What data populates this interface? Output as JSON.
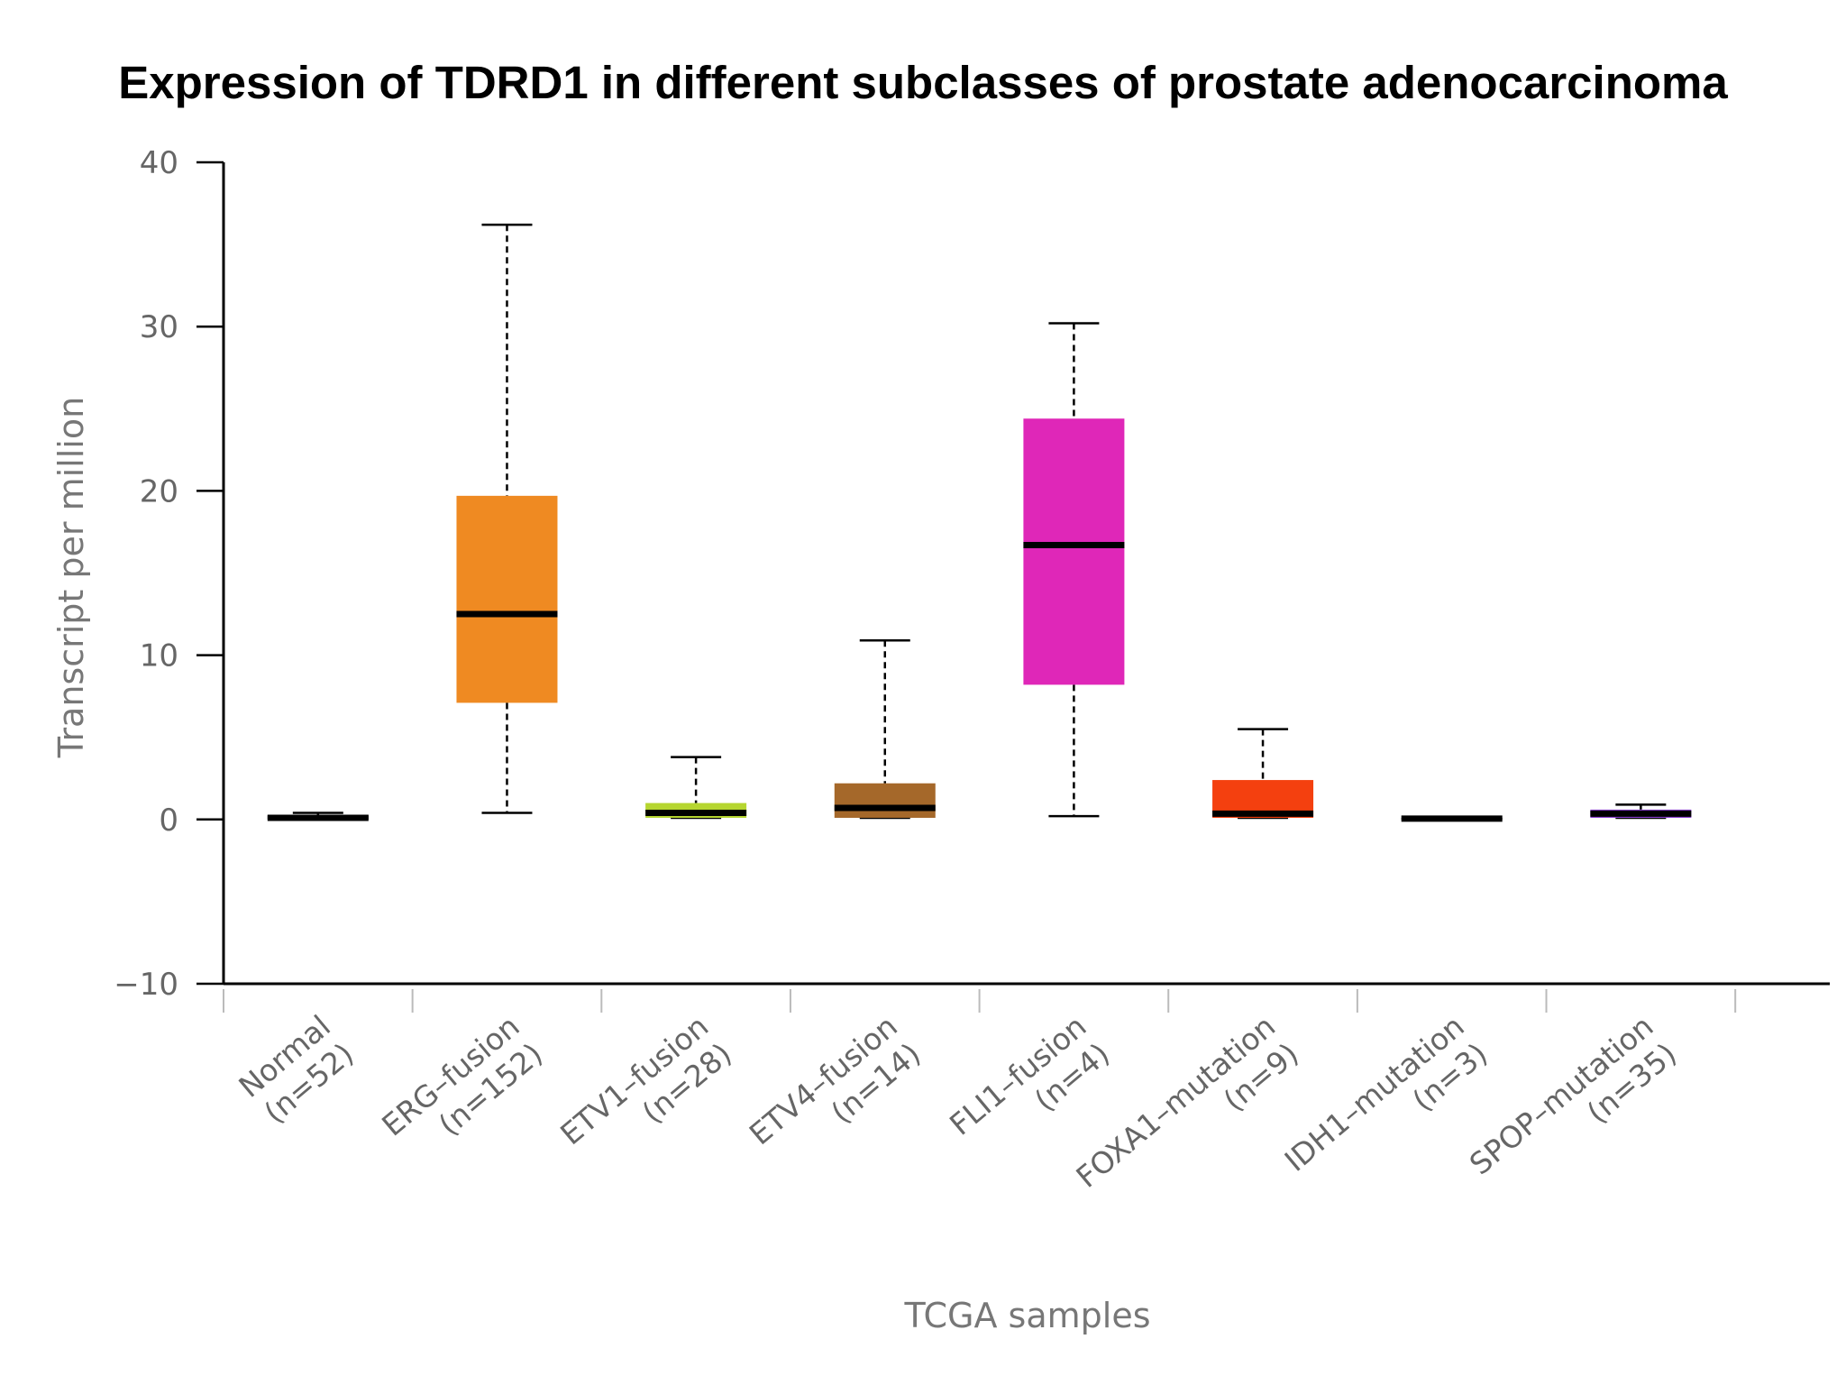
{
  "chart_data": {
    "type": "box",
    "title": "Expression of TDRD1 in different subclasses of prostate adenocarcinoma",
    "xlabel": "TCGA samples",
    "ylabel": "Transcript per million",
    "ylim": [
      -10,
      40
    ],
    "yticks": [
      -10,
      0,
      10,
      20,
      30,
      40
    ],
    "ytick_labels": [
      "−10",
      "0",
      "10",
      "20",
      "30",
      "40"
    ],
    "grid": false,
    "categories": [
      {
        "name": "Normal",
        "n_label": "(n=52)",
        "min": 0.0,
        "q1": 0.0,
        "median": 0.1,
        "q3": 0.25,
        "max": 0.4,
        "color": "#111111"
      },
      {
        "name": "ERG–fusion",
        "n_label": "(n=152)",
        "min": 0.4,
        "q1": 7.1,
        "median": 12.5,
        "q3": 19.7,
        "max": 36.2,
        "color": "#ef8a22"
      },
      {
        "name": "ETV1–fusion",
        "n_label": "(n=28)",
        "min": 0.1,
        "q1": 0.1,
        "median": 0.4,
        "q3": 1.0,
        "max": 3.8,
        "color": "#b6d630"
      },
      {
        "name": "ETV4–fusion",
        "n_label": "(n=14)",
        "min": 0.1,
        "q1": 0.1,
        "median": 0.7,
        "q3": 2.2,
        "max": 10.9,
        "color": "#a5682a"
      },
      {
        "name": "FLI1–fusion",
        "n_label": "(n=4)",
        "min": 0.2,
        "q1": 8.2,
        "median": 16.7,
        "q3": 24.4,
        "max": 30.2,
        "color": "#df27b8"
      },
      {
        "name": "FOXA1–mutation",
        "n_label": "(n=9)",
        "min": 0.1,
        "q1": 0.1,
        "median": 0.35,
        "q3": 2.4,
        "max": 5.5,
        "color": "#f4400f"
      },
      {
        "name": "IDH1–mutation",
        "n_label": "(n=3)",
        "min": 0.0,
        "q1": 0.0,
        "median": 0.05,
        "q3": 0.1,
        "max": 0.1,
        "color": "#111111"
      },
      {
        "name": "SPOP–mutation",
        "n_label": "(n=35)",
        "min": 0.1,
        "q1": 0.1,
        "median": 0.35,
        "q3": 0.6,
        "max": 0.9,
        "color": "#8a3fd1"
      }
    ]
  }
}
